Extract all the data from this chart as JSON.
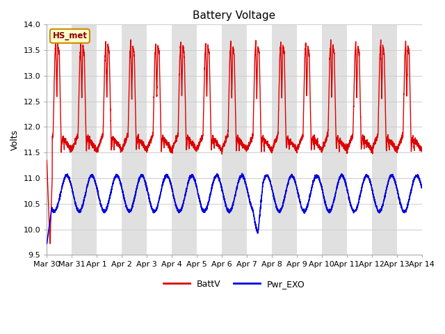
{
  "title": "Battery Voltage",
  "ylabel": "Volts",
  "ylim": [
    9.5,
    14.0
  ],
  "yticks": [
    9.5,
    10.0,
    10.5,
    11.0,
    11.5,
    12.0,
    12.5,
    13.0,
    13.5,
    14.0
  ],
  "xtick_labels": [
    "Mar 30",
    "Mar 31",
    "Apr 1",
    "Apr 2",
    "Apr 3",
    "Apr 4",
    "Apr 5",
    "Apr 6",
    "Apr 7",
    "Apr 8",
    "Apr 9",
    "Apr 10",
    "Apr 11",
    "Apr 12",
    "Apr 13",
    "Apr 14"
  ],
  "line1_color": "#dd0000",
  "line2_color": "#0000dd",
  "line1_label": "BattV",
  "line2_label": "Pwr_EXO",
  "watermark_text": "HS_met",
  "watermark_bg": "#ffffcc",
  "watermark_border": "#cc8800",
  "bg_color": "#ffffff",
  "grid_color": "#cccccc",
  "band_color": "#e0e0e0",
  "title_fontsize": 11,
  "label_fontsize": 9,
  "tick_fontsize": 8
}
